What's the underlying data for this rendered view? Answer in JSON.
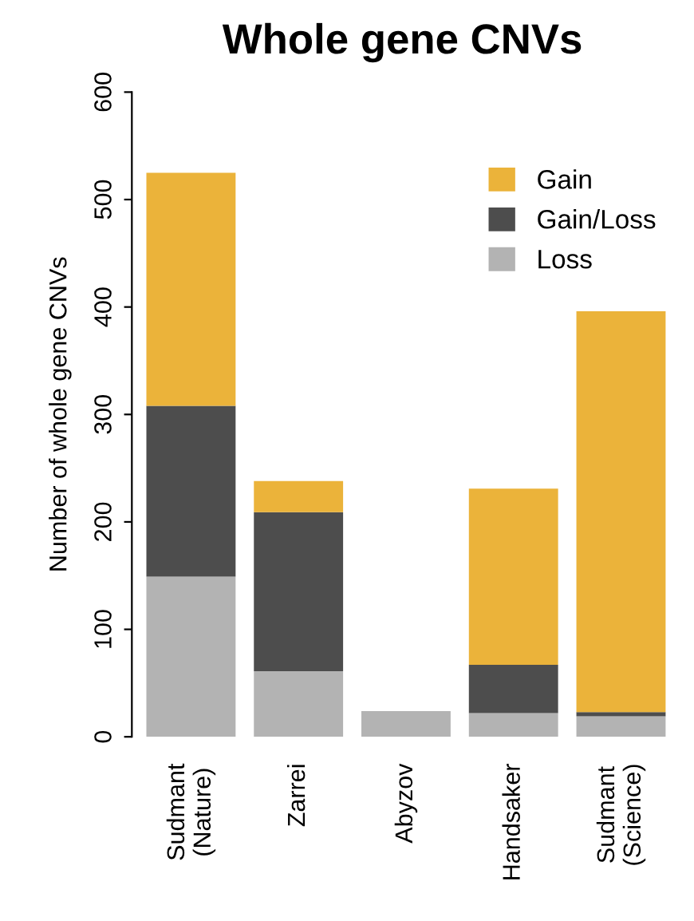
{
  "chart_data": {
    "type": "bar",
    "title": "Whole gene CNVs",
    "ylabel": "Number of whole gene CNVs",
    "categories": [
      "Sudmant\n(Nature)",
      "Zarrei",
      "Abyzov",
      "Handsaker",
      "Sudmant\n(Science)"
    ],
    "stacked": true,
    "series": [
      {
        "name": "Loss",
        "color": "#b3b3b3",
        "values": [
          149,
          61,
          24,
          22,
          19
        ]
      },
      {
        "name": "Gain/Loss",
        "color": "#4d4d4d",
        "values": [
          159,
          148,
          0,
          45,
          4
        ]
      },
      {
        "name": "Gain",
        "color": "#ebb33a",
        "values": [
          217,
          29,
          0,
          164,
          373
        ]
      }
    ],
    "ylim": [
      0,
      600
    ],
    "yticks": [
      0,
      100,
      200,
      300,
      400,
      500,
      600
    ],
    "grid": false,
    "legend": "top right"
  }
}
